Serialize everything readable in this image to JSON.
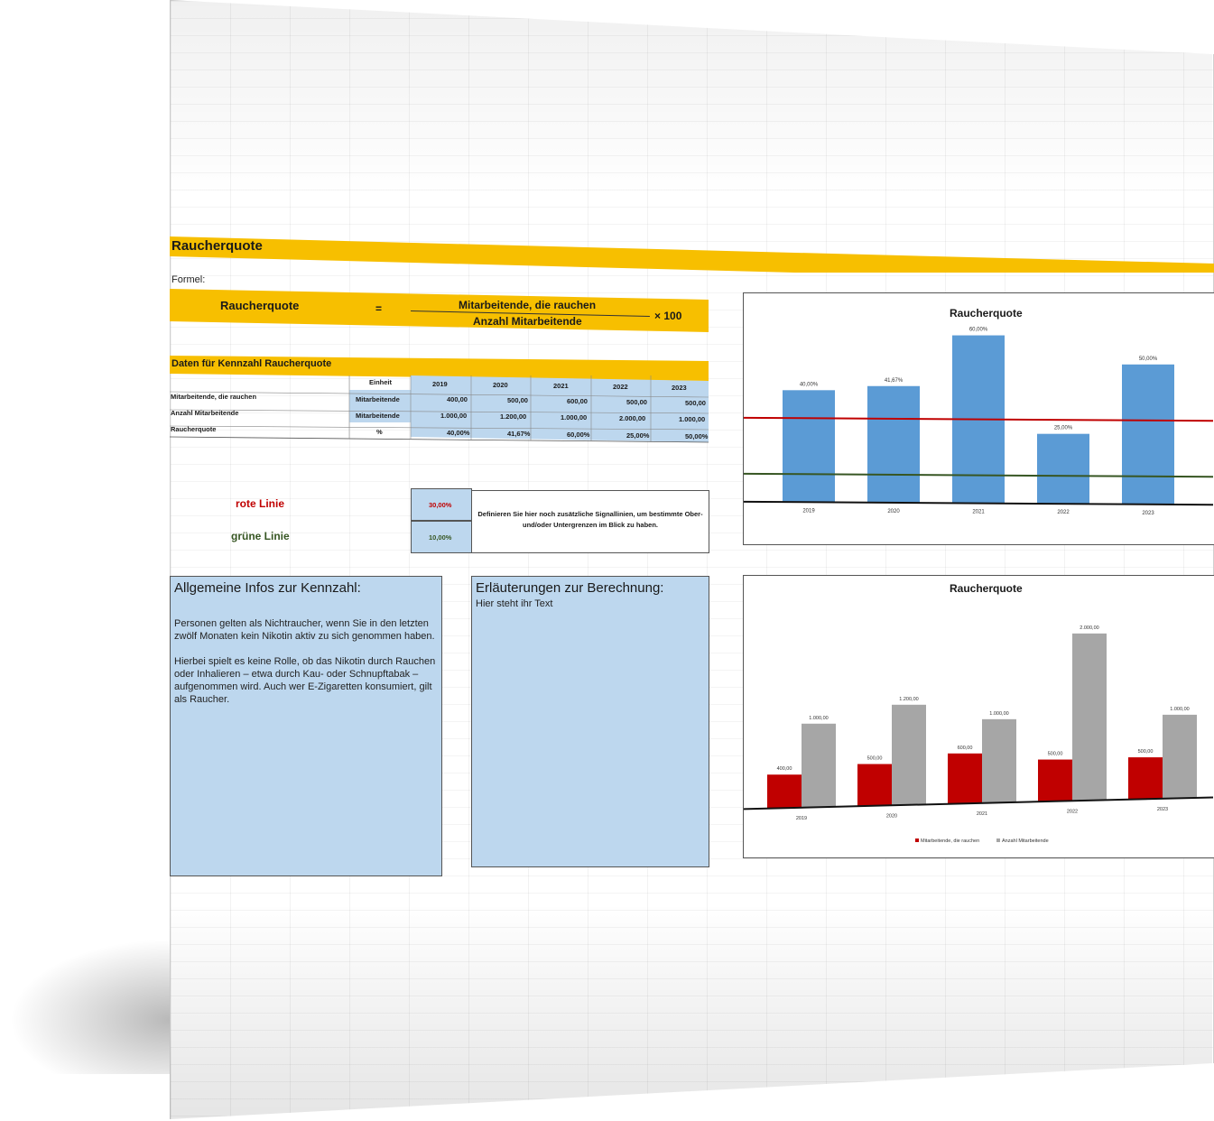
{
  "title": "Raucherquote",
  "formula": {
    "label": "Formel:",
    "lhs": "Raucherquote",
    "equals": "=",
    "numerator": "Mitarbeitende, die rauchen",
    "denominator": "Anzahl Mitarbeitende",
    "factor": "× 100"
  },
  "data_table": {
    "title": "Daten für Kennzahl Raucherquote",
    "unit_header": "Einheit",
    "years": [
      "2019",
      "2020",
      "2021",
      "2022",
      "2023"
    ],
    "rows": [
      {
        "label": "Mitarbeitende, die rauchen",
        "unit": "Mitarbeitende",
        "values": [
          "400,00",
          "500,00",
          "600,00",
          "500,00",
          "500,00"
        ]
      },
      {
        "label": "Anzahl Mitarbeitende",
        "unit": "Mitarbeitende",
        "values": [
          "1.000,00",
          "1.200,00",
          "1.000,00",
          "2.000,00",
          "1.000,00"
        ]
      },
      {
        "label": "Raucherquote",
        "unit": "%",
        "values": [
          "40,00%",
          "41,67%",
          "60,00%",
          "25,00%",
          "50,00%"
        ]
      }
    ]
  },
  "signal_lines": {
    "red": {
      "label": "rote Linie",
      "value": "30,00%",
      "color": "#c00000"
    },
    "green": {
      "label": "grüne Linie",
      "value": "10,00%",
      "color": "#375623"
    },
    "note": "Definieren Sie hier noch zusätzliche Signallinien, um bestimmte Ober- und/oder Untergrenzen im Blick zu haben."
  },
  "info_general": {
    "title": "Allgemeine Infos zur Kennzahl:",
    "paragraphs": [
      "Personen gelten als Nichtraucher, wenn Sie in den letzten zwölf Monaten kein Nikotin aktiv zu sich genommen haben.",
      "Hierbei spielt es keine Rolle, ob das Nikotin durch Rauchen oder Inhalieren – etwa durch Kau- oder Schnupftabak – aufgenommen wird. Auch wer E-Zigaretten konsumiert, gilt als Raucher."
    ]
  },
  "info_calc": {
    "title": "Erläuterungen zur Berechnung:",
    "body": "Hier steht ihr Text"
  },
  "chart_data": [
    {
      "type": "bar",
      "title": "Raucherquote",
      "categories": [
        "2019",
        "2020",
        "2021",
        "2022",
        "2023"
      ],
      "values": [
        40.0,
        41.67,
        60.0,
        25.0,
        50.0
      ],
      "data_labels": [
        "40,00%",
        "41,67%",
        "60,00%",
        "25,00%",
        "50,00%"
      ],
      "ylim": [
        0,
        60
      ],
      "reference_lines": [
        {
          "value": 30,
          "color": "#c00000"
        },
        {
          "value": 10,
          "color": "#375623"
        }
      ],
      "bar_color": "#5b9bd5",
      "grid": false,
      "legend": "none"
    },
    {
      "type": "bar",
      "title": "Raucherquote",
      "categories": [
        "2019",
        "2020",
        "2021",
        "2022",
        "2023"
      ],
      "series": [
        {
          "name": "Mitarbeitende, die rauchen",
          "values": [
            400,
            500,
            600,
            500,
            500
          ],
          "labels": [
            "400,00",
            "500,00",
            "600,00",
            "500,00",
            "500,00"
          ],
          "color": "#c00000"
        },
        {
          "name": "Anzahl Mitarbeitende",
          "values": [
            1000,
            1200,
            1000,
            2000,
            1000
          ],
          "labels": [
            "1.000,00",
            "1.200,00",
            "1.000,00",
            "2.000,00",
            "1.000,00"
          ],
          "color": "#a6a6a6"
        }
      ],
      "ylim": [
        0,
        2000
      ],
      "grid": false,
      "legend": "bottom"
    }
  ]
}
